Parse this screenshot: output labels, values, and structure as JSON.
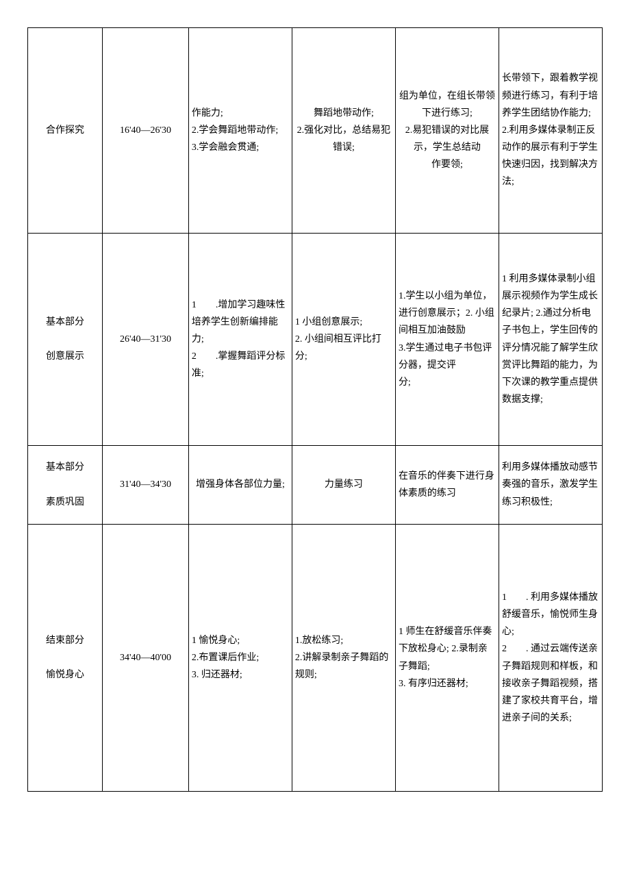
{
  "rows": [
    {
      "phase": "合作探究",
      "time": "16'40—26'30",
      "objective": "作能力;\n2.学会舞蹈地带动作;\n3.学会融会贯通;",
      "teacher": "舞蹈地带动作;\n2.强化对比，总结易犯错误;",
      "student": "组为单位，在组长带领下进行练习;\n2.易犯错误的对比展示，学生总结动\n作要领;",
      "design": "长带领下，跟着教学视频进行练习，有利于培养学生团结协作能力;\n2.利用多媒体录制正反动作的展示有利于学生快速归因，找到解决方法;"
    },
    {
      "phase": "基本部分\n\n创意展示",
      "time": "26'40—31'30",
      "objective": "1　　.增加学习趣味性培养学生创新编排能力;\n2　　.掌握舞蹈评分标准;",
      "teacher": "1 小组创意展示;\n2. 小组间相互评比打分;",
      "student": "1.学生以小组为单位，进行创意展示；2. 小组间相互加油鼓励\n3.学生通过电子书包评分器，提交评\n分;",
      "design": "1 利用多媒体录制小组展示视频作为学生成长纪录片; 2.通过分析电子书包上，学生回传的评分情况能了解学生欣赏评比舞蹈的能力，为下次课的教学重点提供数据支撑;"
    },
    {
      "phase": "基本部分\n\n素质巩固",
      "time": "31'40—34'30",
      "objective": "增强身体各部位力量;",
      "teacher": "力量练习",
      "student": "在音乐的伴奏下进行身体素质的练习",
      "design": "利用多媒体播放动感节奏强的音乐，激发学生练习积极性;"
    },
    {
      "phase": "结束部分\n\n愉悦身心",
      "time": "34'40—40'00",
      "objective": "1 愉悦身心;\n2.布置课后作业;\n3. 归还器材;",
      "teacher": "1.放松练习;\n2.讲解录制亲子舞蹈的规则;",
      "student": "1 师生在舒缓音乐伴奏下放松身心; 2.录制亲子舞蹈;\n3. 有序归还器材;",
      "design": "1　　. 利用多媒体播放舒缓音乐，愉悦师生身心;\n2　　. 通过云端传送亲子舞蹈规则和样板，和接收亲子舞蹈视频，搭建了家校共育平台，增进亲子间的关系;"
    }
  ]
}
